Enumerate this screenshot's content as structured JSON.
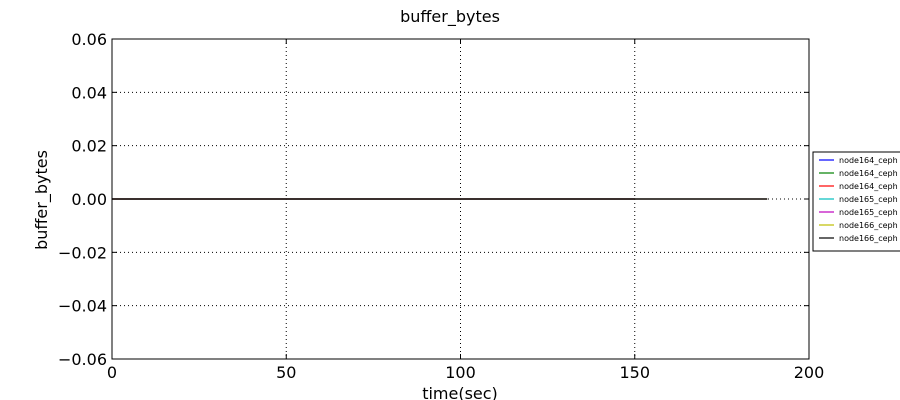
{
  "chart_data": {
    "type": "line",
    "title": "buffer_bytes",
    "xlabel": "time(sec)",
    "ylabel": "buffer_bytes",
    "xlim": [
      0,
      200
    ],
    "ylim": [
      -0.06,
      0.06
    ],
    "x_ticks": [
      0,
      50,
      100,
      150,
      200
    ],
    "y_ticks": [
      0.06,
      0.04,
      0.02,
      0.0,
      -0.02,
      -0.04,
      -0.06
    ],
    "x_tick_labels": [
      "0",
      "50",
      "100",
      "150",
      "200"
    ],
    "y_tick_labels": [
      "0.06",
      "0.04",
      "0.02",
      "0.00",
      "−0.02",
      "−0.04",
      "−0.06"
    ],
    "grid": true,
    "legend_position": "right-outside",
    "series": [
      {
        "name": "node164_ceph",
        "color": "#0000ff",
        "x": [
          0,
          150
        ],
        "y": [
          0,
          0
        ]
      },
      {
        "name": "node164_ceph",
        "color": "#008000",
        "x": [
          0,
          150
        ],
        "y": [
          0,
          0
        ]
      },
      {
        "name": "node164_ceph",
        "color": "#ff0000",
        "x": [
          0,
          150
        ],
        "y": [
          0,
          0
        ]
      },
      {
        "name": "node165_ceph",
        "color": "#00bfbf",
        "x": [
          0,
          188
        ],
        "y": [
          0,
          0
        ]
      },
      {
        "name": "node165_ceph",
        "color": "#bf00bf",
        "x": [
          0,
          188
        ],
        "y": [
          0,
          0
        ]
      },
      {
        "name": "node166_ceph",
        "color": "#bfbf00",
        "x": [
          0,
          188
        ],
        "y": [
          0,
          0
        ]
      },
      {
        "name": "node166_ceph",
        "color": "#000000",
        "x": [
          0,
          188
        ],
        "y": [
          0,
          0
        ]
      }
    ]
  }
}
